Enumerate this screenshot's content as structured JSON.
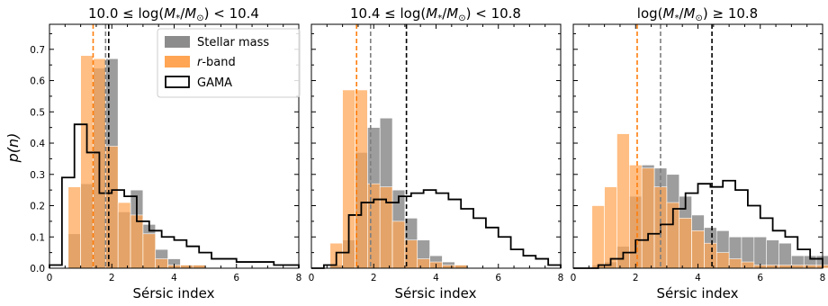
{
  "chart_data": {
    "type": "bar",
    "ylabel": "p(n)",
    "ylim": [
      0,
      0.78
    ],
    "yticks": [
      "0.0",
      "0.1",
      "0.2",
      "0.3",
      "0.4",
      "0.5",
      "0.6",
      "0.7"
    ],
    "ytick_values": [
      0,
      0.1,
      0.2,
      0.3,
      0.4,
      0.5,
      0.6,
      0.7
    ],
    "xlim": [
      0,
      8
    ],
    "xticks": [
      "0",
      "2",
      "4",
      "6",
      "8"
    ],
    "xtick_values": [
      0,
      2,
      4,
      6,
      8
    ],
    "legend": {
      "placement": "top-right",
      "entries": [
        "Stellar mass",
        "r-band",
        "GAMA"
      ]
    },
    "colors": {
      "stellar_mass": "#8c8c8c",
      "r_band": "#ffa553",
      "gama": "#000000",
      "median_r_band": "#ff7f0e",
      "median_stellar_mass": "#7f7f7f",
      "median_gama": "#000000"
    },
    "panels": [
      {
        "title_prefix": "10.0 ≤ log(",
        "title_suffix": ") < 10.4",
        "xlabel": "Sérsic index",
        "stellar_mass": {
          "x": [
            0.6,
            1.0,
            1.4,
            1.8,
            2.2,
            2.6,
            3.0,
            3.4,
            3.8,
            4.2,
            4.6
          ],
          "values": [
            0.11,
            0.27,
            0.64,
            0.67,
            0.18,
            0.25,
            0.14,
            0.06,
            0.03,
            0.01,
            0.01
          ]
        },
        "r_band": {
          "x": [
            0.6,
            1.0,
            1.4,
            1.8,
            2.2,
            2.6,
            3.0,
            3.4,
            3.8,
            4.2,
            4.6
          ],
          "values": [
            0.26,
            0.68,
            0.67,
            0.39,
            0.21,
            0.17,
            0.11,
            0.03,
            0.01,
            0.01,
            0.01
          ]
        },
        "gama": {
          "x": [
            0.0,
            0.4,
            0.8,
            1.2,
            1.6,
            2.0,
            2.4,
            2.8,
            3.2,
            3.6,
            4.0,
            4.4,
            4.8,
            5.2,
            5.6,
            6.0,
            6.4,
            6.8,
            7.2,
            7.6
          ],
          "values": [
            0.01,
            0.29,
            0.46,
            0.37,
            0.24,
            0.25,
            0.23,
            0.15,
            0.12,
            0.1,
            0.09,
            0.07,
            0.05,
            0.03,
            0.03,
            0.02,
            0.02,
            0.02,
            0.01,
            0.01
          ]
        },
        "medians": {
          "r_band": 1.4,
          "stellar_mass": 1.8,
          "gama": 1.9
        }
      },
      {
        "title_prefix": "10.4 ≤ log(",
        "title_suffix": ") < 10.8",
        "xlabel": "Sérsic index",
        "stellar_mass": {
          "x": [
            0.6,
            1.0,
            1.4,
            1.8,
            2.2,
            2.6,
            3.0,
            3.4,
            3.8,
            4.2,
            4.6
          ],
          "values": [
            0.01,
            0.09,
            0.37,
            0.45,
            0.48,
            0.25,
            0.16,
            0.09,
            0.04,
            0.02,
            0.01
          ]
        },
        "r_band": {
          "x": [
            0.6,
            1.0,
            1.4,
            1.8,
            2.2,
            2.6,
            3.0,
            3.4,
            3.8,
            4.2,
            4.6
          ],
          "values": [
            0.08,
            0.57,
            0.57,
            0.27,
            0.26,
            0.15,
            0.09,
            0.03,
            0.02,
            0.01,
            0.01
          ]
        },
        "gama": {
          "x": [
            0.0,
            0.4,
            0.8,
            1.2,
            1.6,
            2.0,
            2.4,
            2.8,
            3.2,
            3.6,
            4.0,
            4.4,
            4.8,
            5.2,
            5.6,
            6.0,
            6.4,
            6.8,
            7.2,
            7.6
          ],
          "values": [
            0.0,
            0.01,
            0.05,
            0.17,
            0.21,
            0.22,
            0.21,
            0.23,
            0.24,
            0.25,
            0.24,
            0.22,
            0.19,
            0.16,
            0.13,
            0.1,
            0.06,
            0.04,
            0.03,
            0.01
          ]
        },
        "medians": {
          "r_band": 1.45,
          "stellar_mass": 1.9,
          "gama": 3.05
        }
      },
      {
        "title_prefix": "log(",
        "title_suffix": ") ≥ 10.8",
        "xlabel": "Sérsic index",
        "stellar_mass": {
          "x": [
            0.6,
            1.0,
            1.4,
            1.8,
            2.2,
            2.6,
            3.0,
            3.4,
            3.8,
            4.2,
            4.6,
            5.0,
            5.4,
            5.8,
            6.2,
            6.6,
            7.0,
            7.4,
            7.8
          ],
          "values": [
            0.01,
            0.02,
            0.07,
            0.23,
            0.33,
            0.32,
            0.3,
            0.23,
            0.17,
            0.13,
            0.12,
            0.1,
            0.1,
            0.1,
            0.09,
            0.08,
            0.04,
            0.04,
            0.04
          ]
        },
        "r_band": {
          "x": [
            0.6,
            1.0,
            1.4,
            1.8,
            2.2,
            2.6,
            3.0,
            3.4,
            3.8,
            4.2,
            4.6,
            5.0,
            5.4,
            5.8,
            6.2,
            6.6,
            7.0,
            7.4,
            7.8
          ],
          "values": [
            0.2,
            0.26,
            0.43,
            0.33,
            0.32,
            0.26,
            0.21,
            0.16,
            0.12,
            0.08,
            0.05,
            0.03,
            0.02,
            0.01,
            0.01,
            0.01,
            0.01,
            0.01,
            0.01
          ]
        },
        "gama": {
          "x": [
            0.0,
            0.4,
            0.8,
            1.2,
            1.6,
            2.0,
            2.4,
            2.8,
            3.2,
            3.6,
            4.0,
            4.4,
            4.8,
            5.2,
            5.6,
            6.0,
            6.4,
            6.8,
            7.2,
            7.6
          ],
          "values": [
            0.0,
            0.0,
            0.01,
            0.03,
            0.05,
            0.09,
            0.11,
            0.14,
            0.19,
            0.24,
            0.27,
            0.26,
            0.28,
            0.25,
            0.2,
            0.16,
            0.12,
            0.1,
            0.06,
            0.03
          ]
        },
        "medians": {
          "r_band": 2.05,
          "stellar_mass": 2.8,
          "gama": 4.45
        }
      }
    ]
  }
}
